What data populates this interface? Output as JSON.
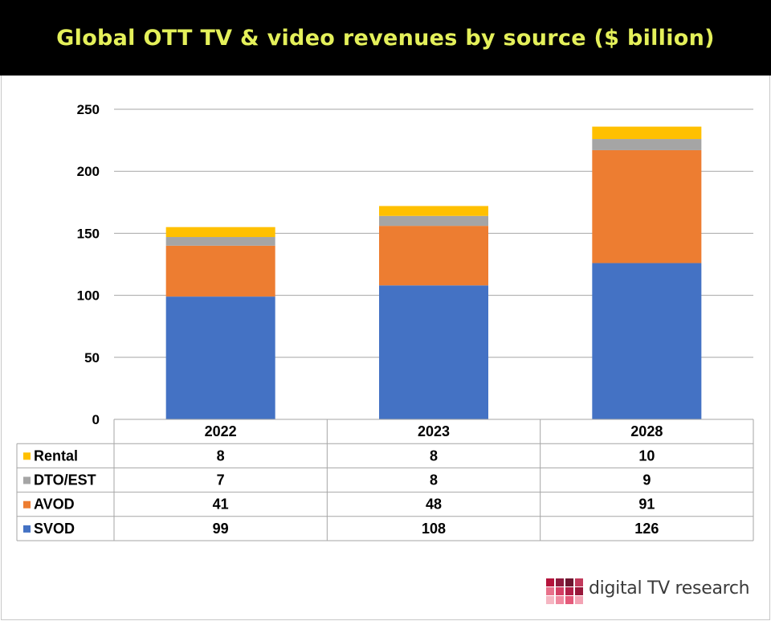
{
  "title": "Global OTT TV & video revenues by source ($ billion)",
  "colors": {
    "title_bg": "#000000",
    "title_text": "#e4f05a",
    "SVOD": "#4472c4",
    "AVOD": "#ed7d31",
    "DTO/EST": "#a5a5a5",
    "Rental": "#ffc000"
  },
  "chart_data": {
    "type": "bar",
    "stacked": true,
    "categories": [
      "2022",
      "2023",
      "2028"
    ],
    "series": [
      {
        "name": "SVOD",
        "values": [
          99,
          108,
          126
        ]
      },
      {
        "name": "AVOD",
        "values": [
          41,
          48,
          91
        ]
      },
      {
        "name": "DTO/EST",
        "values": [
          7,
          8,
          9
        ]
      },
      {
        "name": "Rental",
        "values": [
          8,
          8,
          10
        ]
      }
    ],
    "ylim": [
      0,
      250
    ],
    "yticks": [
      0,
      50,
      100,
      150,
      200,
      250
    ],
    "grid": true,
    "data_table": true,
    "table_row_order": [
      "Rental",
      "DTO/EST",
      "AVOD",
      "SVOD"
    ]
  },
  "logo": {
    "text": "digital TV research",
    "icon": "mosaic-squares-logo"
  }
}
